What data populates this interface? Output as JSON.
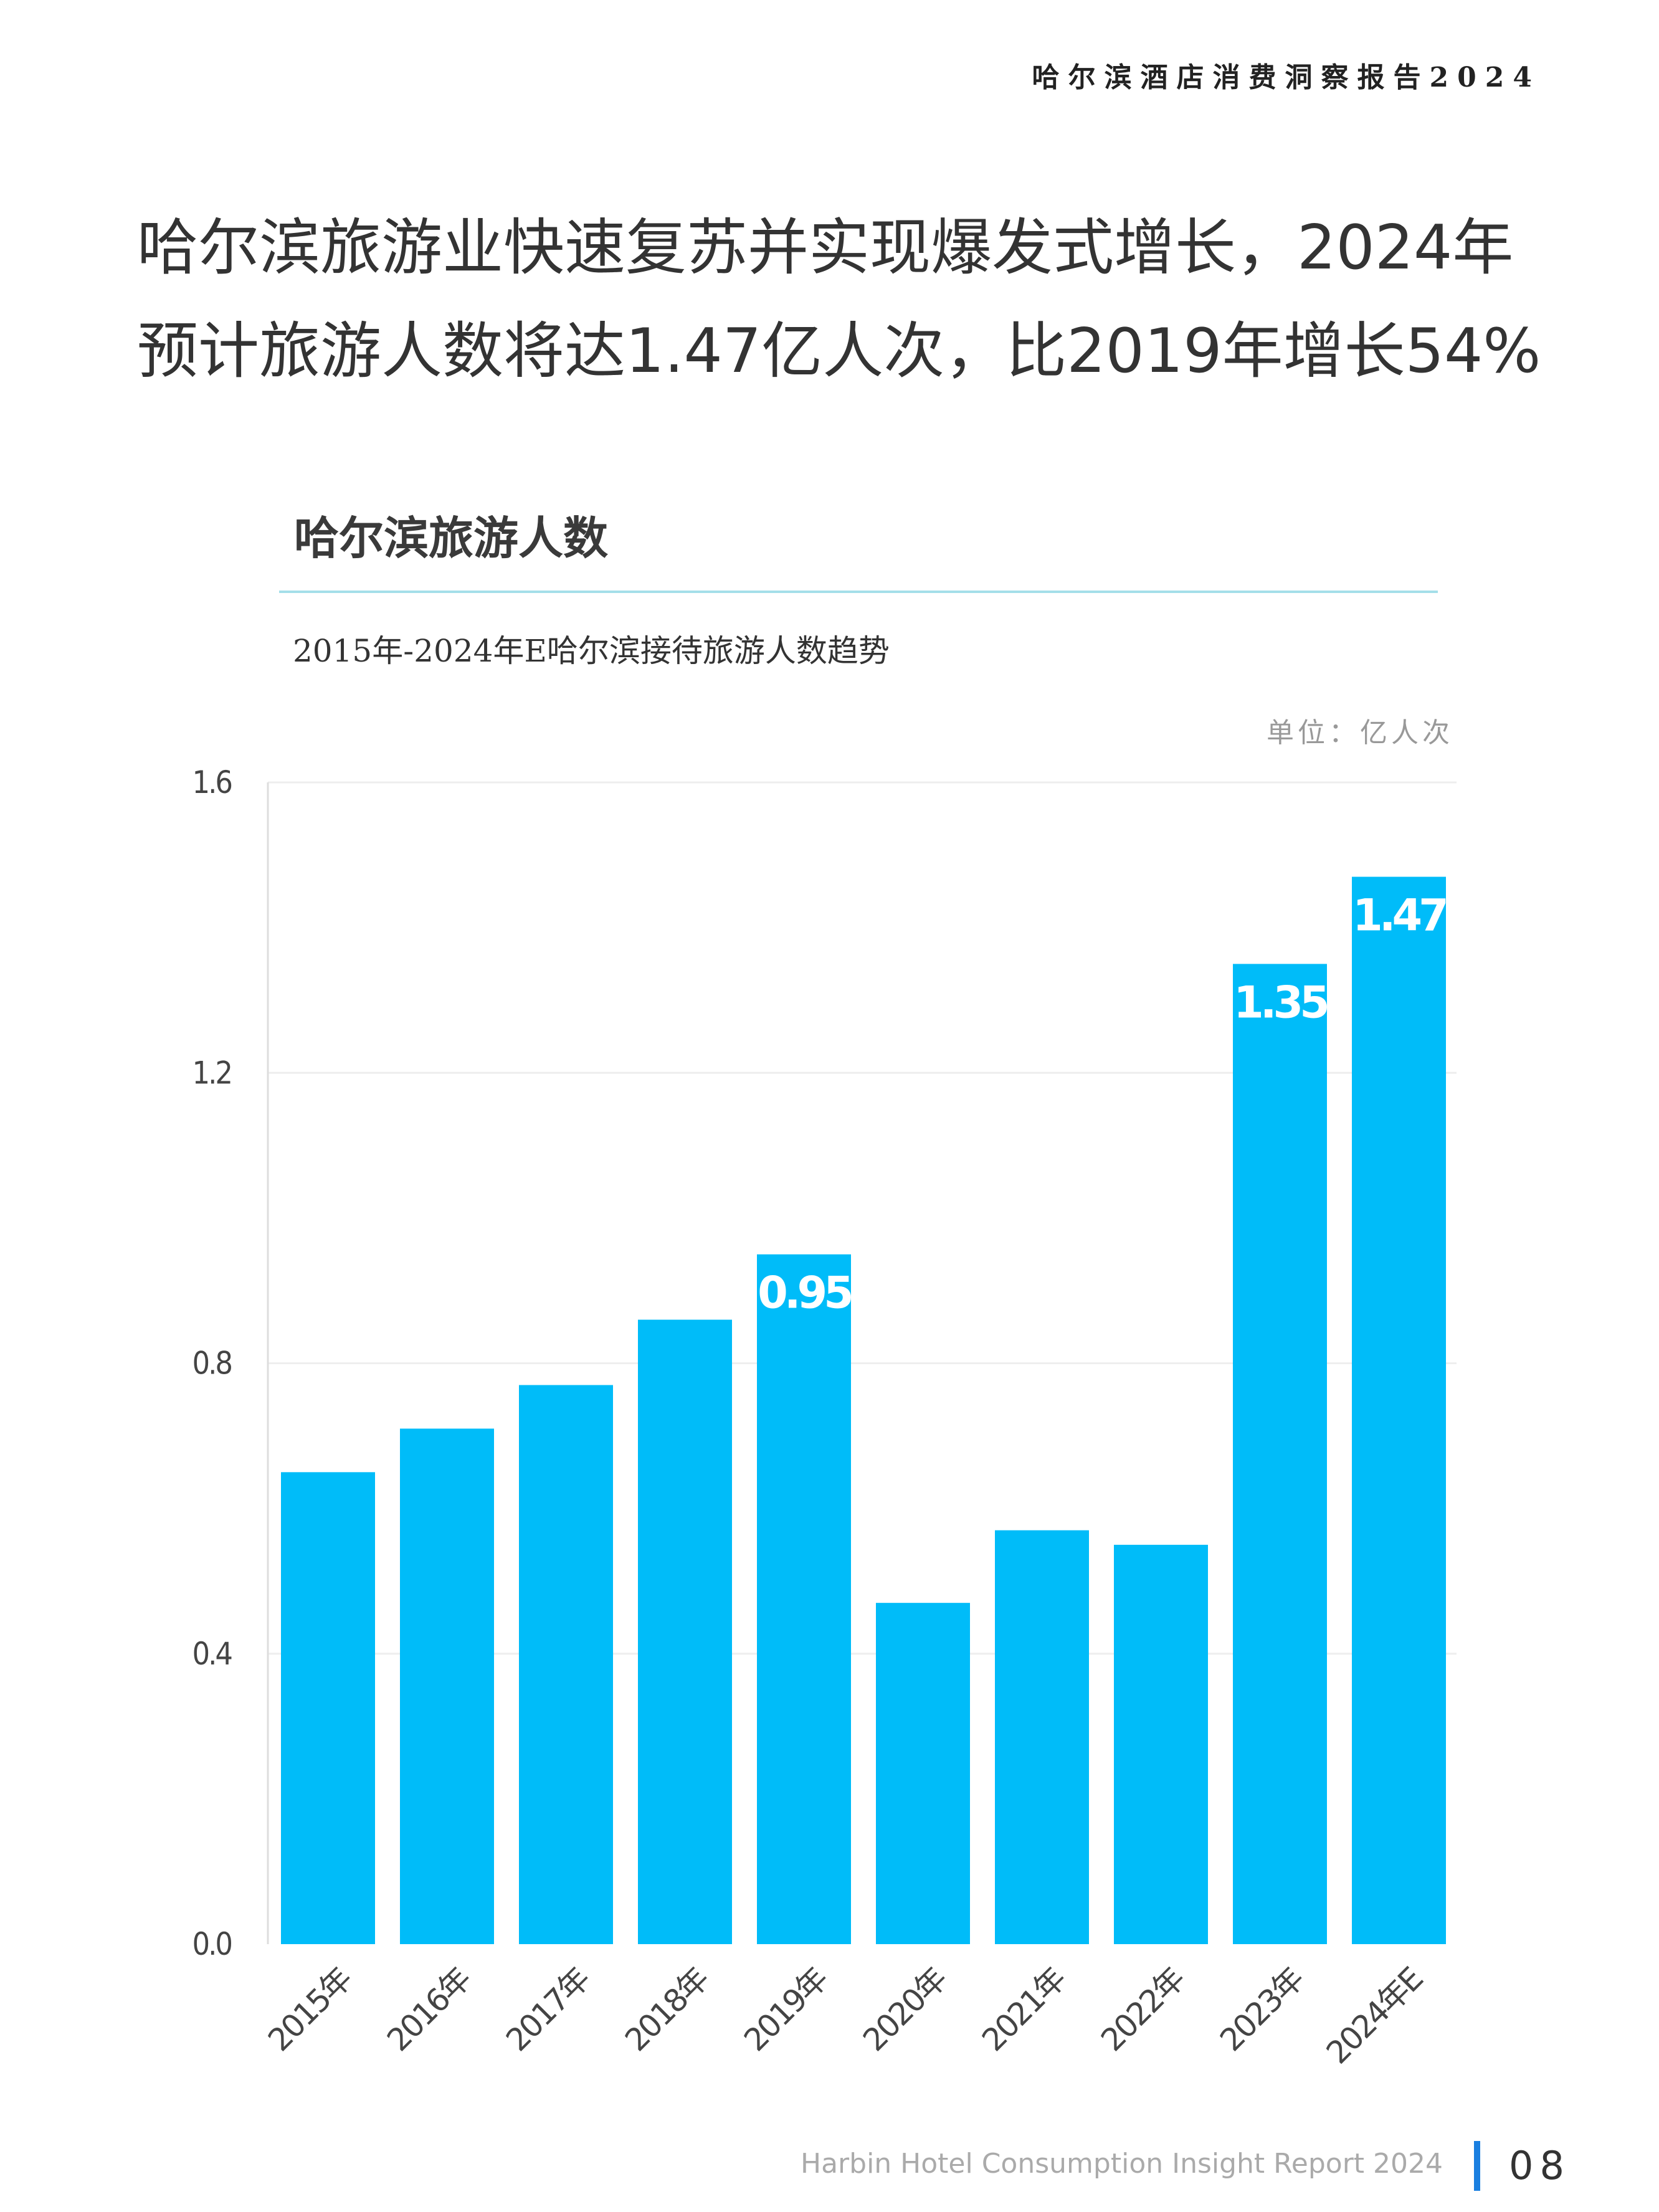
{
  "header": {
    "report_title": "哈尔滨酒店消费洞察报告2024"
  },
  "headline": {
    "text": "哈尔滨旅游业快速复苏并实现爆发式增长，2024年预计旅游人数将达1.47亿人次，比2019年增长54%"
  },
  "footer": {
    "text": "Harbin Hotel Consumption Insight Report 2024",
    "page": "08",
    "accent": "#1a7fe0"
  },
  "chart_data": {
    "type": "bar",
    "title": "哈尔滨旅游人数",
    "subtitle": "2015年-2024年E哈尔滨接待旅游人数趋势",
    "unit": "单位：亿人次",
    "categories": [
      "2015年",
      "2016年",
      "2017年",
      "2018年",
      "2019年",
      "2020年",
      "2021年",
      "2022年",
      "2023年",
      "2024年E"
    ],
    "values": [
      0.65,
      0.71,
      0.77,
      0.86,
      0.95,
      0.47,
      0.57,
      0.55,
      1.35,
      1.47
    ],
    "data_labels": {
      "4": "0.95",
      "8": "1.35",
      "9": "1.47"
    },
    "yticks": [
      "0.0",
      "0.4",
      "0.8",
      "1.2",
      "1.6"
    ],
    "ylim": [
      0,
      1.6
    ],
    "grid": true,
    "bar_color": "#00bcf9"
  }
}
